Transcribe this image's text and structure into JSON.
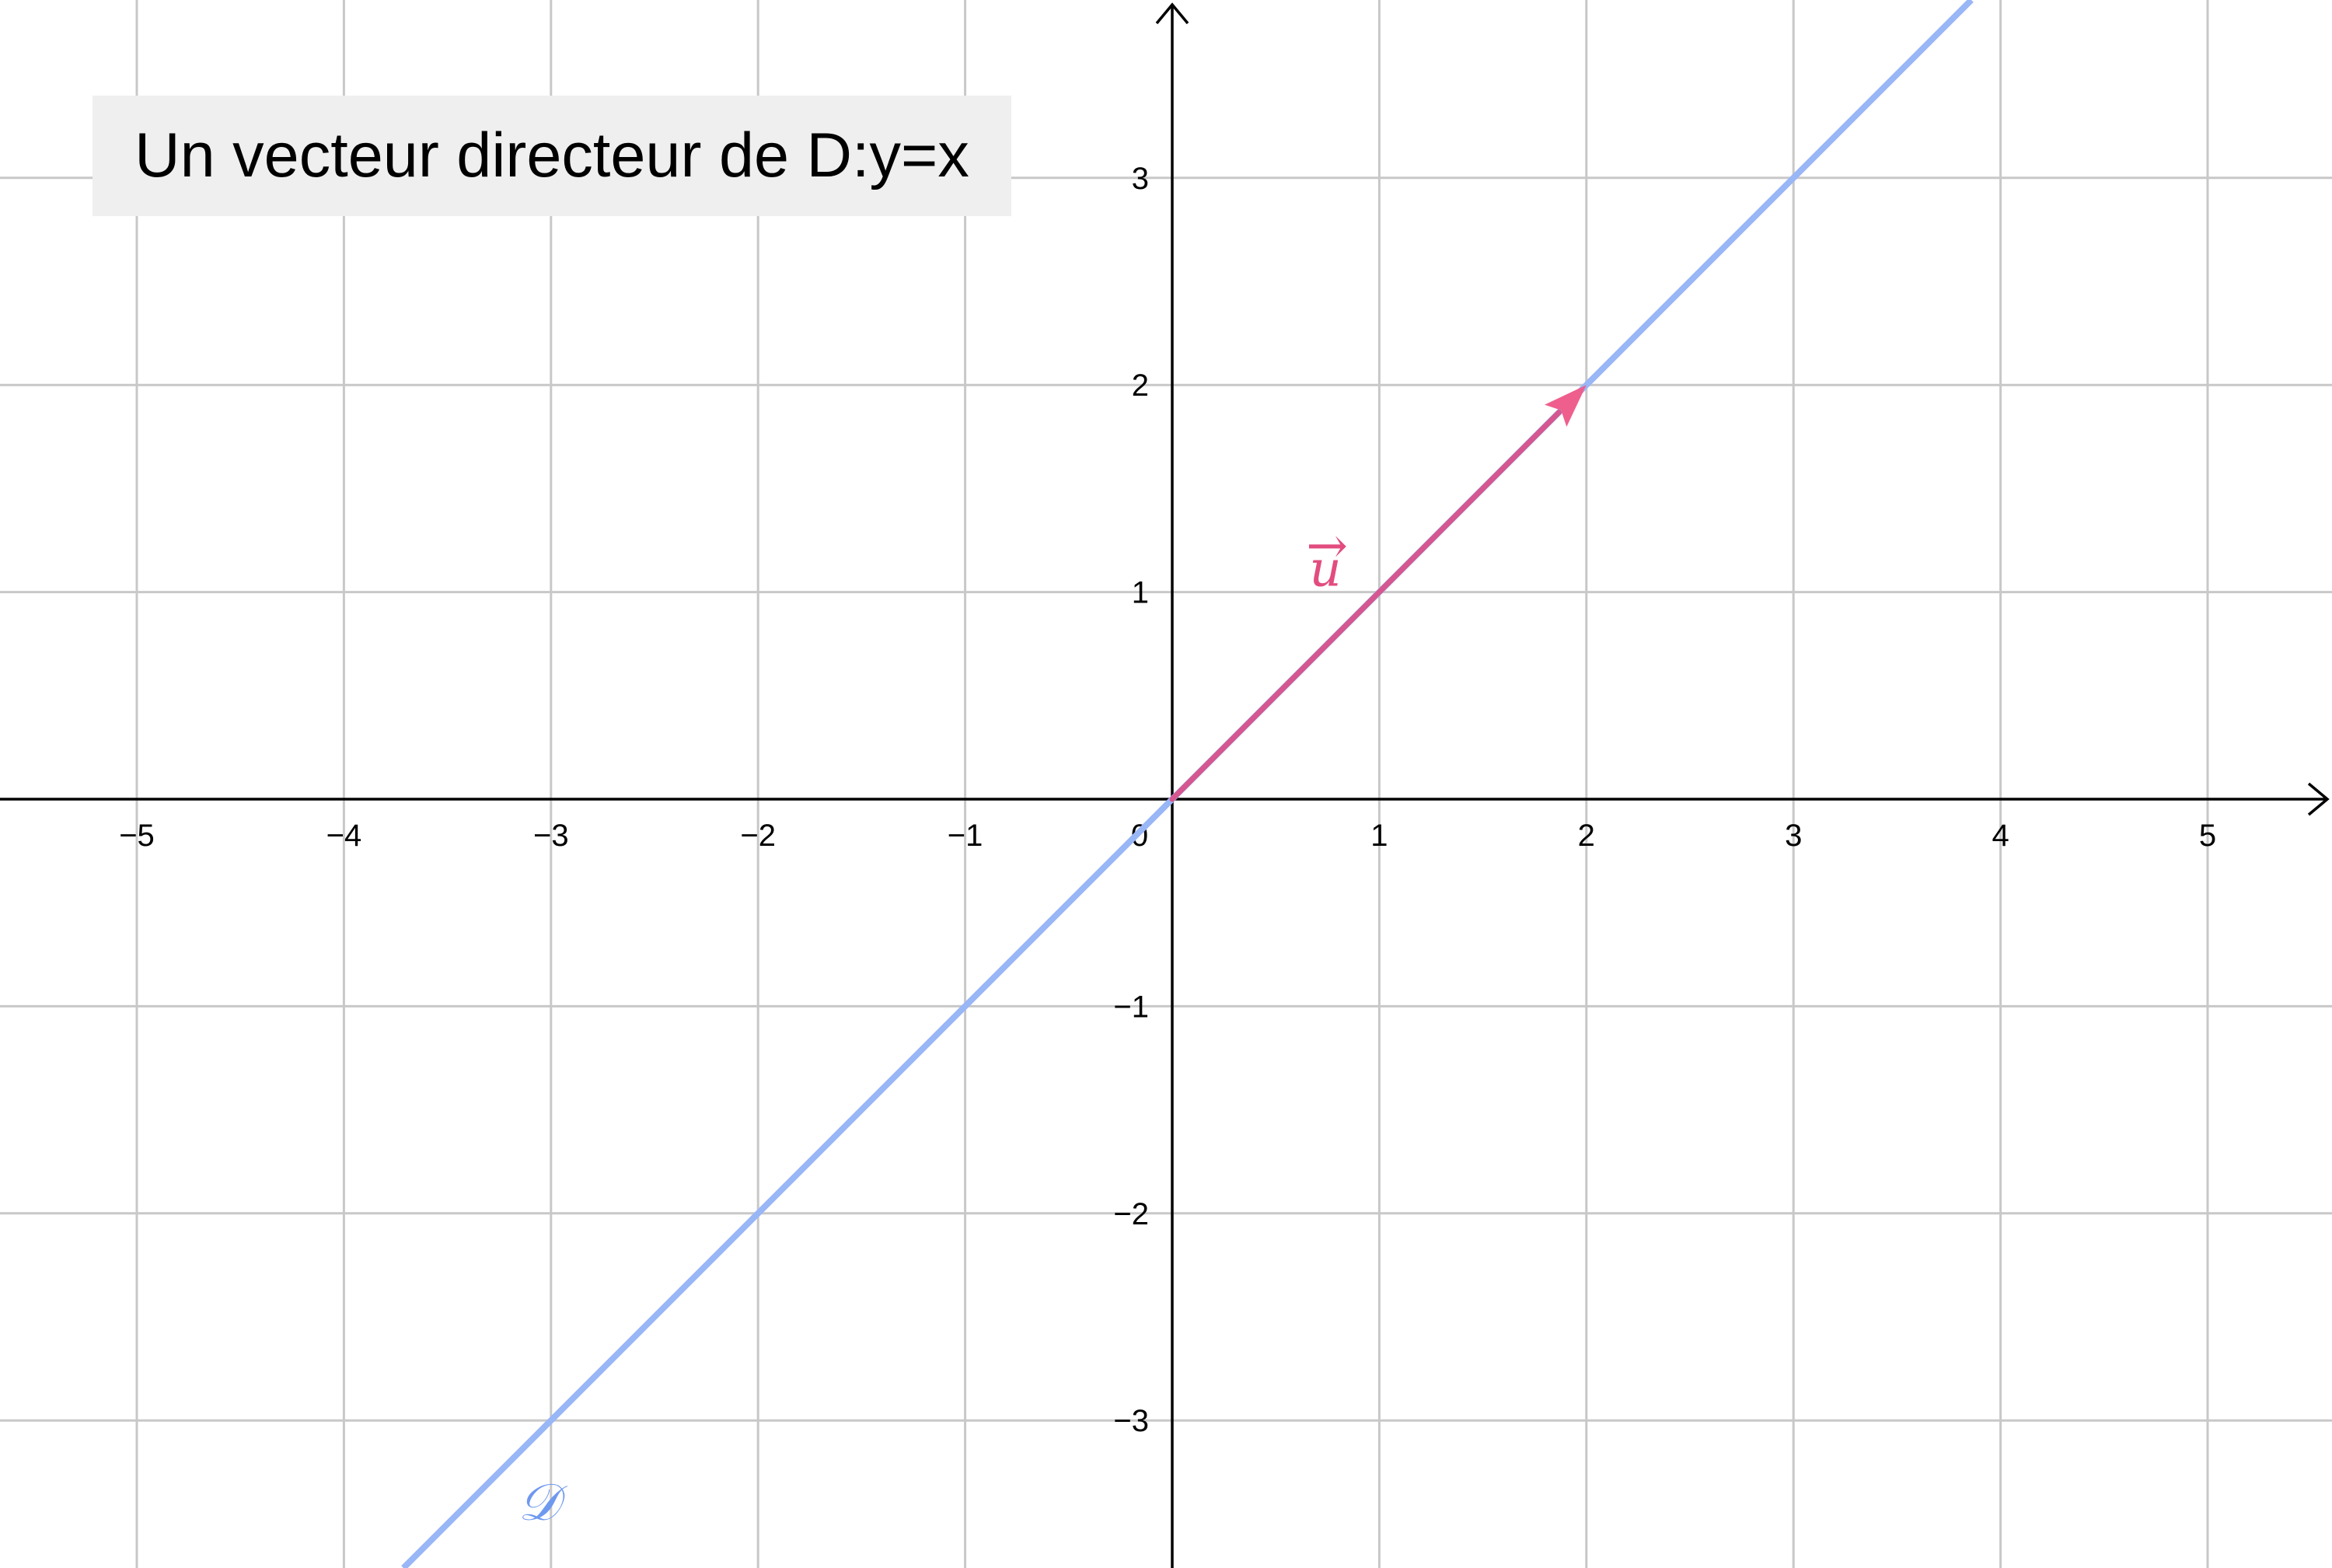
{
  "title": "Un vecteur directeur de D:y=x",
  "colors": {
    "grid": "#c8c8c8",
    "axis": "#000000",
    "line": "#99b6f6",
    "line_label": "#6f98ef",
    "vector": "#d6578f",
    "vector_head": "#ee5f8d",
    "vector_label": "#e24c7e",
    "title_background": "#efefef"
  },
  "chart_data": {
    "type": "line",
    "xlim": [
      -5.7,
      5.6
    ],
    "ylim": [
      -3.7,
      3.85
    ],
    "grid": true,
    "x_ticks": [
      -5,
      -4,
      -3,
      -2,
      -1,
      1,
      2,
      3,
      4,
      5
    ],
    "y_ticks": [
      -3,
      -2,
      -1,
      1,
      2,
      3
    ],
    "x_tick_labels": [
      "−5",
      "−4",
      "−3",
      "−2",
      "−1",
      "1",
      "2",
      "3",
      "4",
      "5"
    ],
    "y_tick_labels": [
      "−3",
      "−2",
      "−1",
      "1",
      "2",
      "3"
    ],
    "origin_label": "0",
    "line": {
      "label": "𝒟",
      "equation": "y=x",
      "slope": 1,
      "intercept": 0
    },
    "vector": {
      "label": "u",
      "arrow": "→",
      "from": [
        0,
        0
      ],
      "to": [
        2,
        2
      ]
    }
  }
}
